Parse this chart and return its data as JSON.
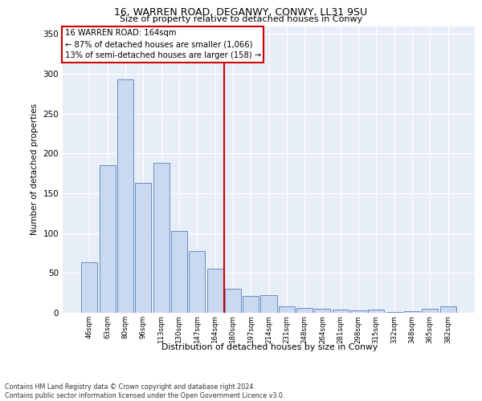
{
  "title1": "16, WARREN ROAD, DEGANWY, CONWY, LL31 9SU",
  "title2": "Size of property relative to detached houses in Conwy",
  "xlabel": "Distribution of detached houses by size in Conwy",
  "ylabel": "Number of detached properties",
  "categories": [
    "46sqm",
    "63sqm",
    "80sqm",
    "96sqm",
    "113sqm",
    "130sqm",
    "147sqm",
    "164sqm",
    "180sqm",
    "197sqm",
    "214sqm",
    "231sqm",
    "248sqm",
    "264sqm",
    "281sqm",
    "298sqm",
    "315sqm",
    "332sqm",
    "348sqm",
    "365sqm",
    "382sqm"
  ],
  "values": [
    63,
    185,
    293,
    163,
    188,
    103,
    78,
    55,
    30,
    21,
    22,
    8,
    6,
    5,
    4,
    3,
    4,
    1,
    2,
    5,
    8
  ],
  "bar_color": "#c9d9f0",
  "bar_edge_color": "#5580b8",
  "vline_index": 7,
  "vline_color": "#cc0000",
  "annotation_box_edge_color": "#cc0000",
  "footer": "Contains HM Land Registry data © Crown copyright and database right 2024.\nContains public sector information licensed under the Open Government Licence v3.0.",
  "ylim": [
    0,
    360
  ],
  "yticks": [
    0,
    50,
    100,
    150,
    200,
    250,
    300,
    350
  ],
  "plot_background": "#e8eef8",
  "grid_color": "#ffffff"
}
